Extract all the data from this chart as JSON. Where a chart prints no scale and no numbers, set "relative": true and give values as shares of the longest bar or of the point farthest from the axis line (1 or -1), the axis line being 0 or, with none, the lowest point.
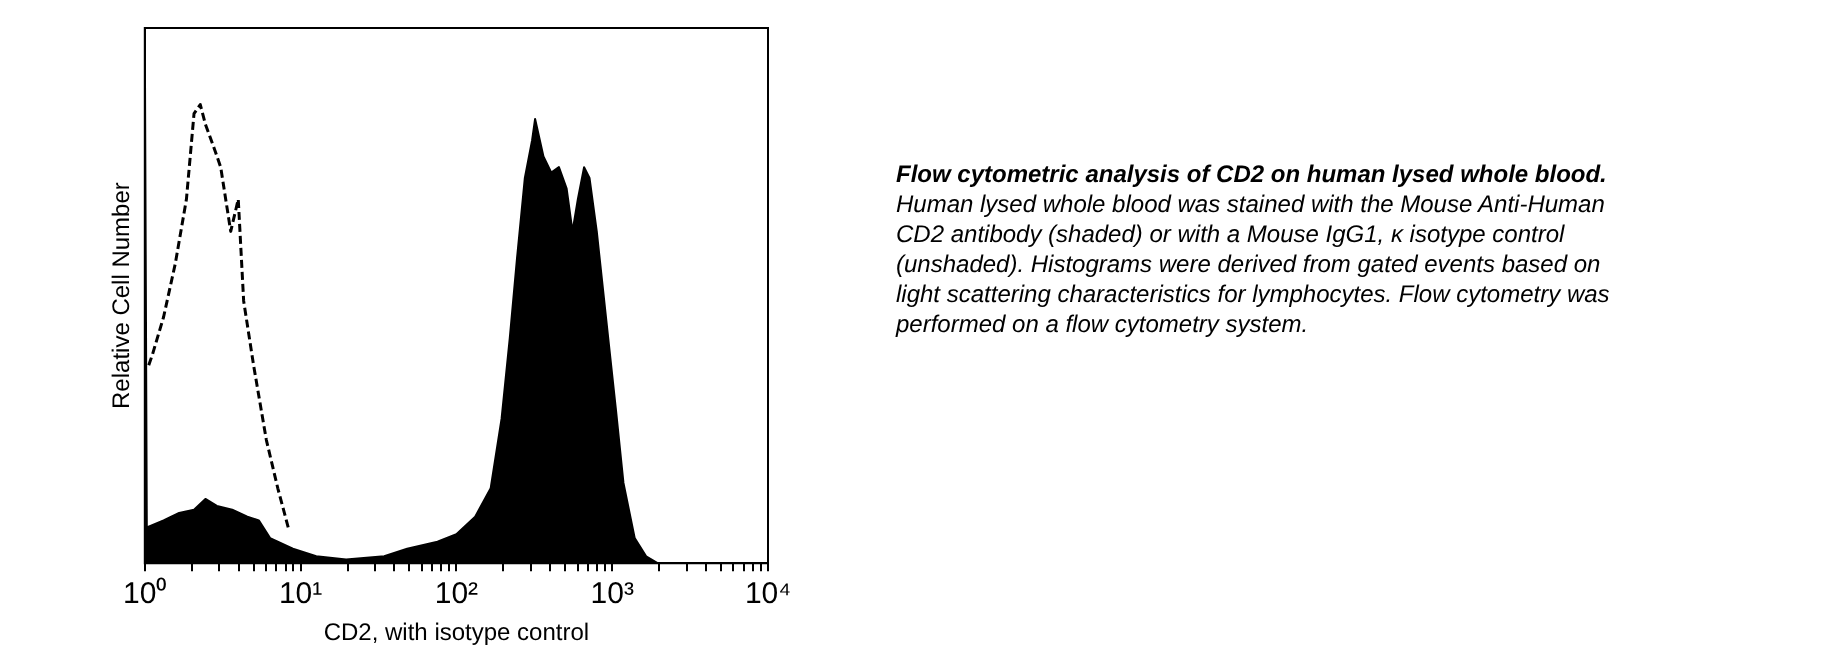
{
  "chart_data": {
    "type": "area",
    "title": "Flow cytometric analysis of CD2 on human lysed whole blood.",
    "annotations": [
      "Human lysed whole blood was stained with the Mouse Anti-Human CD2 antibody (shaded) or with a Mouse IgG1, κ isotype control (unshaded).  Histograms were derived from gated events based on light scattering characteristics for lymphocytes. Flow cytometry was performed on a flow cytometry system."
    ],
    "xlabel": "CD2, with isotype control",
    "ylabel": "Relative Cell Number",
    "log": "x",
    "relative": true,
    "grid": false,
    "legend": false,
    "marker": "none",
    "xlim": [
      1,
      10000
    ],
    "xticks": [
      {
        "value": 1,
        "label": "10⁰"
      },
      {
        "value": 2,
        "label": null
      },
      {
        "value": 3,
        "label": null
      },
      {
        "value": 4,
        "label": null
      },
      {
        "value": 5,
        "label": null
      },
      {
        "value": 6,
        "label": null
      },
      {
        "value": 7,
        "label": null
      },
      {
        "value": 8,
        "label": null
      },
      {
        "value": 9,
        "label": null
      },
      {
        "value": 10,
        "label": "10¹"
      },
      {
        "value": 20,
        "label": null
      },
      {
        "value": 30,
        "label": null
      },
      {
        "value": 40,
        "label": null
      },
      {
        "value": 50,
        "label": null
      },
      {
        "value": 60,
        "label": null
      },
      {
        "value": 70,
        "label": null
      },
      {
        "value": 80,
        "label": null
      },
      {
        "value": 90,
        "label": null
      },
      {
        "value": 100,
        "label": "10²"
      },
      {
        "value": 200,
        "label": null
      },
      {
        "value": 300,
        "label": null
      },
      {
        "value": 400,
        "label": null
      },
      {
        "value": 500,
        "label": null
      },
      {
        "value": 600,
        "label": null
      },
      {
        "value": 700,
        "label": null
      },
      {
        "value": 800,
        "label": null
      },
      {
        "value": 900,
        "label": null
      },
      {
        "value": 1000,
        "label": "10³"
      },
      {
        "value": 2000,
        "label": null
      },
      {
        "value": 3000,
        "label": null
      },
      {
        "value": 4000,
        "label": null
      },
      {
        "value": 5000,
        "label": null
      },
      {
        "value": 6000,
        "label": null
      },
      {
        "value": 7000,
        "label": null
      },
      {
        "value": 8000,
        "label": null
      },
      {
        "value": 9000,
        "label": null
      },
      {
        "value": 10000,
        "label": "10⁴"
      }
    ],
    "series": [
      {
        "type": "area",
        "color": "#000000",
        "x": [
          1,
          1.03,
          1.32,
          1.66,
          2.07,
          2.45,
          2.9,
          3.64,
          4.55,
          5.39,
          6.37,
          8.92,
          12.6,
          19.6,
          34.4,
          48.3,
          75.6,
          100,
          132,
          166,
          195,
          220,
          245,
          275,
          306,
          320,
          362,
          406,
          455,
          510,
          556,
          602,
          660,
          715,
          796,
          943,
          1054,
          1181,
          1394,
          1651,
          1955,
          10000
        ],
        "values": [
          1,
          0.067,
          0.08,
          0.094,
          0.1,
          0.12,
          0.107,
          0.1,
          0.087,
          0.08,
          0.047,
          0.027,
          0.013,
          0.007,
          0.013,
          0.027,
          0.04,
          0.054,
          0.087,
          0.14,
          0.27,
          0.42,
          0.57,
          0.72,
          0.79,
          0.83,
          0.76,
          0.73,
          0.74,
          0.7,
          0.62,
          0.68,
          0.74,
          0.72,
          0.62,
          0.42,
          0.29,
          0.15,
          0.047,
          0.013,
          0,
          0
        ]
      },
      {
        "type": "line",
        "color": "#000000",
        "line_style": "dashed",
        "x": [
          1.06,
          1.12,
          1.32,
          1.57,
          1.85,
          2.07,
          2.27,
          2.45,
          2.75,
          3.07,
          3.56,
          3.98,
          4.31,
          4.99,
          6.03,
          7.14,
          8.45
        ],
        "values": [
          0.37,
          0.39,
          0.46,
          0.56,
          0.68,
          0.84,
          0.857,
          0.82,
          0.78,
          0.74,
          0.62,
          0.68,
          0.49,
          0.37,
          0.23,
          0.14,
          0.06
        ]
      }
    ]
  }
}
